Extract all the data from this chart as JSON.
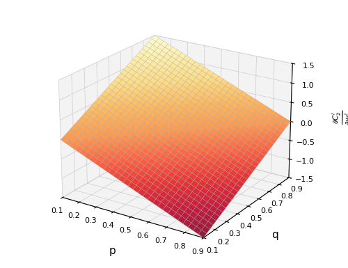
{
  "p_range": [
    0.1,
    0.9
  ],
  "q_range": [
    0.1,
    0.9
  ],
  "n_points": 30,
  "zlim": [
    -1.5,
    1.5
  ],
  "xlabel": "p",
  "ylabel": "q",
  "zlabel": "$\\frac{\\partial C_2^i}{\\partial w_2^i}$",
  "xticks": [
    0.1,
    0.2,
    0.3,
    0.4,
    0.5,
    0.6,
    0.7,
    0.8,
    0.9
  ],
  "yticks": [
    0.1,
    0.2,
    0.3,
    0.4,
    0.5,
    0.6,
    0.7,
    0.8,
    0.9
  ],
  "zticks": [
    -1.5,
    -1.0,
    -0.5,
    0.0,
    0.5,
    1.0,
    1.5
  ],
  "cmap": "YlOrRd_r",
  "alpha": 0.88,
  "elev": 22,
  "azim": -57,
  "figsize": [
    5.0,
    3.85
  ],
  "dpi": 100,
  "pane_color": "#ebebeb",
  "grid_color": "#cccccc",
  "edge_color": "#aaaaaa",
  "scale": 1.875
}
